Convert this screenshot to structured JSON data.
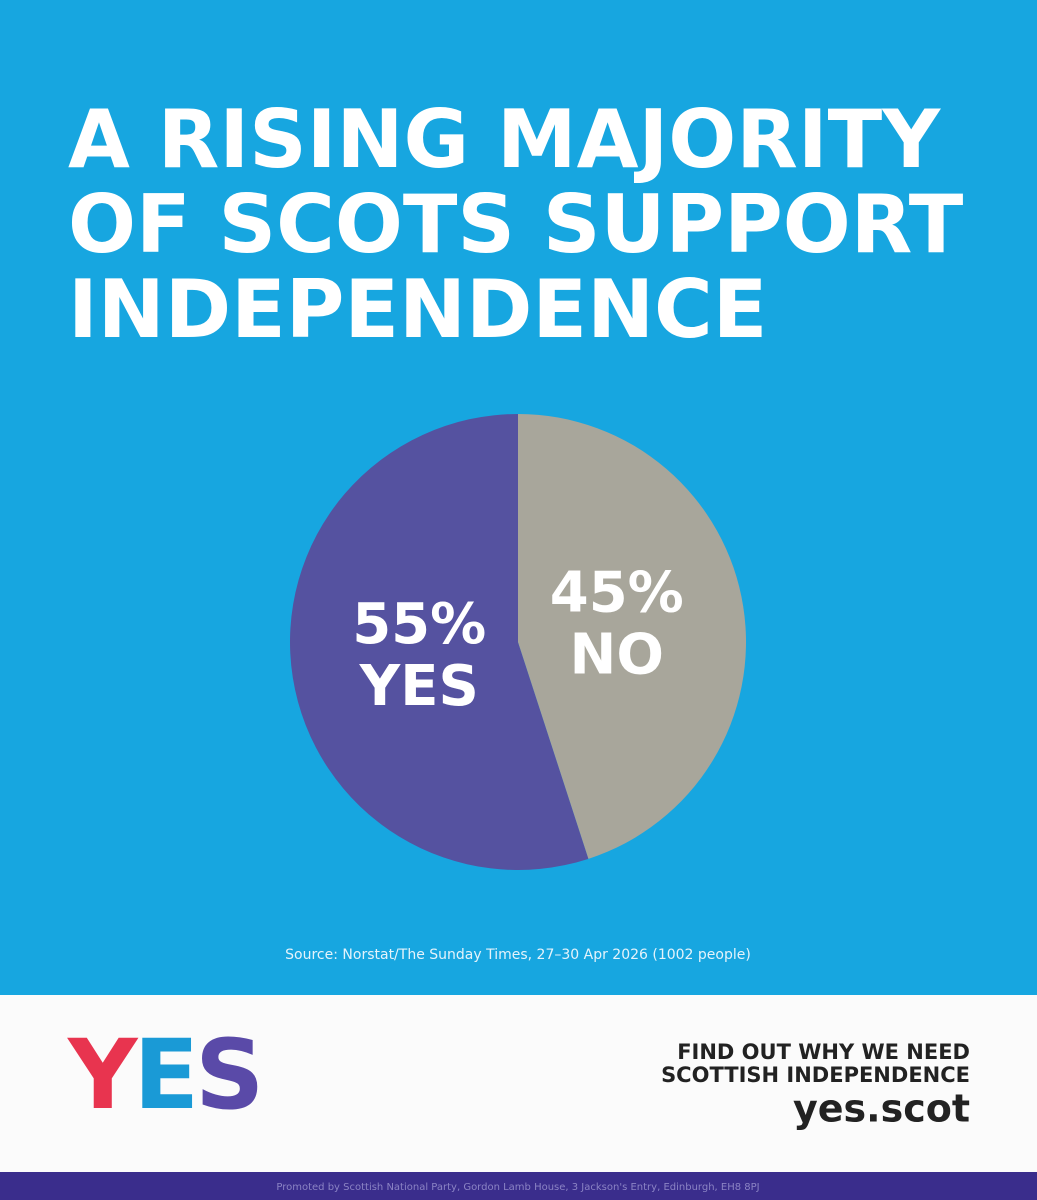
{
  "chart_data": {
    "type": "pie",
    "title_lines": [
      "A RISING MAJORITY",
      "OF SCOTS SUPPORT",
      "INDEPENDENCE"
    ],
    "categories": [
      "YES",
      "NO"
    ],
    "values": [
      55,
      45
    ],
    "value_labels": [
      "55%",
      "45%"
    ],
    "colors": [
      "#5552a0",
      "#a8a69b"
    ],
    "source": "Source: Norstat/The Sunday Times, 27–30 Apr 2026 (1002 people)"
  },
  "footer": {
    "logo": "YES",
    "cta_lines": [
      "FIND OUT WHY WE NEED",
      "SCOTTISH INDEPENDENCE"
    ],
    "url": "yes.scot",
    "imprint": "Promoted by Scottish National Party, Gordon Lamb House, 3 Jackson's Entry, Edinburgh, EH8 8PJ"
  }
}
